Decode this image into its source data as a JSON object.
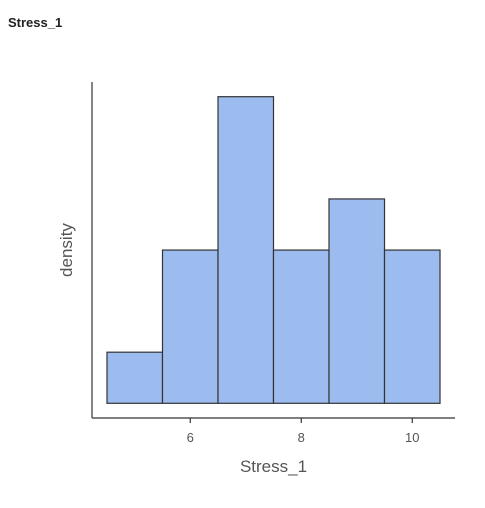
{
  "title": "Stress_1",
  "chart_data": {
    "type": "histogram",
    "xlabel": "Stress_1",
    "ylabel": "density",
    "bin_width": 1,
    "bins": [
      {
        "start": 4.5,
        "end": 5.5,
        "density": 0.0435
      },
      {
        "start": 5.5,
        "end": 6.5,
        "density": 0.1304
      },
      {
        "start": 6.5,
        "end": 7.5,
        "density": 0.2609
      },
      {
        "start": 7.5,
        "end": 8.5,
        "density": 0.1304
      },
      {
        "start": 8.5,
        "end": 9.5,
        "density": 0.1739
      },
      {
        "start": 9.5,
        "end": 10.5,
        "density": 0.1304
      }
    ],
    "x_ticks": [
      6,
      8,
      10
    ],
    "x_range": [
      4.23,
      10.77
    ],
    "y_range": [
      -0.0125,
      0.2734
    ],
    "y_tick_labels_shown": false,
    "grid": false,
    "colors": {
      "bar_fill": "#9cbcf0",
      "bar_stroke": "#333333",
      "axis": "#333333",
      "text": "#555555"
    }
  }
}
